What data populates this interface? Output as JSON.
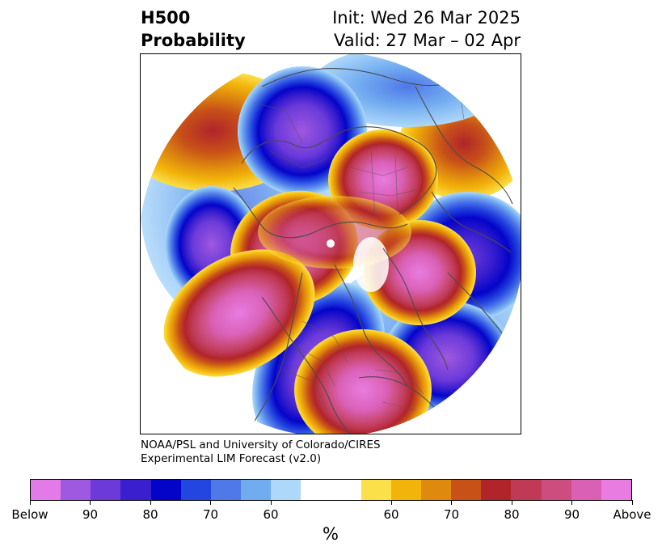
{
  "title": {
    "left_line1": "H500",
    "left_line2": "Probability",
    "right_line1": "Init: Wed 26 Mar 2025",
    "right_line2": "Valid: 27 Mar – 02 Apr"
  },
  "credit": {
    "line1": "NOAA/PSL and University of Colorado/CIRES",
    "line2": "Experimental LIM Forecast (v2.0)"
  },
  "colorbar": {
    "unit": "%",
    "below_colors": [
      "#e27be8",
      "#9f58e0",
      "#6b3ad9",
      "#3a1fcf",
      "#0404c9",
      "#2345e0",
      "#4f78e8",
      "#72acf0",
      "#aed8fa"
    ],
    "neutral_color": "#ffffff",
    "above_colors": [
      "#fbe04a",
      "#f2b30a",
      "#df8a0f",
      "#c85118",
      "#b0242a",
      "#c03a57",
      "#cc4d7e",
      "#da60b6",
      "#e87ce1"
    ],
    "tick_labels": [
      "Below",
      "90",
      "80",
      "70",
      "60",
      "60",
      "70",
      "80",
      "90",
      "Above"
    ]
  },
  "map": {
    "projection": "north-polar-stereographic",
    "features": [
      "probability-contours",
      "coastlines",
      "country-borders",
      "state-borders"
    ]
  }
}
